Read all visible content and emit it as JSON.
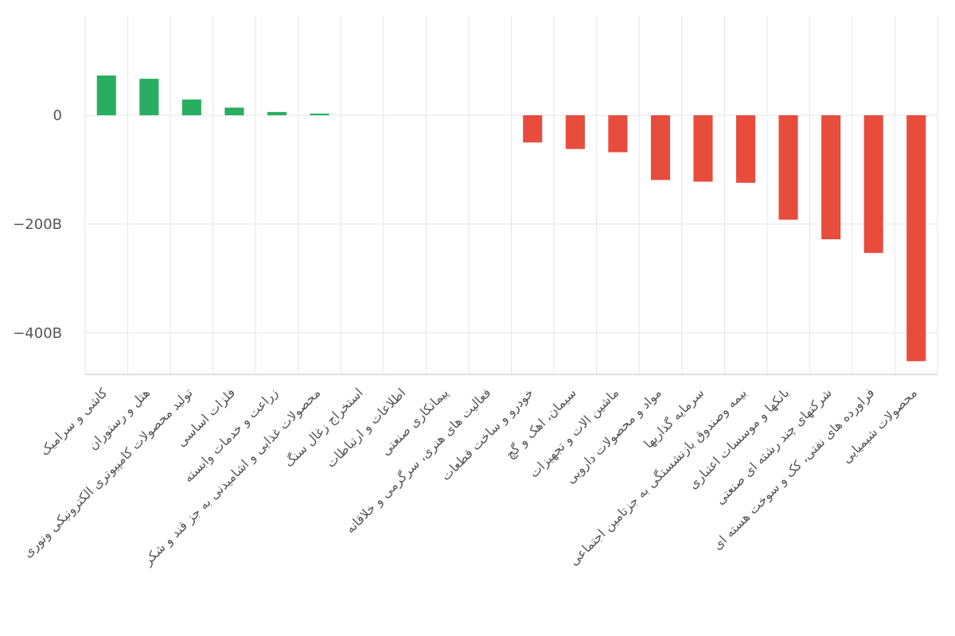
{
  "chart_data": {
    "type": "bar",
    "categories": [
      "کاشی و سرامیک",
      "هتل و رستوران",
      "تولید محصولات کامپیوتری الکترونیکی ونوری",
      "فلزات اساسی",
      "زراعت و خدمات وابسته",
      "محصولات غذایی و اشامیدنی به جز قند و شکر",
      "استخراج زغال سنگ",
      "اطلاعات و ارتباطات",
      "پیمانکاری صنعتی",
      "فعالیت های هنری، سرگرمی و خلاقانه",
      "خودرو و ساخت قطعات",
      "سیمان، اهک و گچ",
      "ماشین الات و تجهیزات",
      "مواد و محصولات دارویی",
      "سرمایه گذاریها",
      "بیمه وصندوق بازنشستگی به جزتامین اجتماعی",
      "بانکها و موسسات اعتباری",
      "شرکتهای چند رشته ای صنعتی",
      "فراورده های نفتی، کک و سوخت هسته ای",
      "محصولات شیمیایی"
    ],
    "values": [
      73,
      67,
      29,
      14,
      6,
      3,
      0,
      0,
      0,
      0,
      -50,
      -62,
      -68,
      -119,
      -122,
      -124,
      -192,
      -228,
      -253,
      -452
    ],
    "units": "B",
    "y_ticks": [
      {
        "value": 0,
        "label": "0"
      },
      {
        "value": -200,
        "label": "−200B"
      },
      {
        "value": -400,
        "label": "−400B"
      }
    ],
    "ylim": [
      -480,
      170
    ],
    "colors": {
      "positive": "#27ae60",
      "negative": "#e74c3c"
    },
    "title": "",
    "xlabel": "",
    "ylabel": "",
    "grid": true,
    "legend": "none"
  }
}
